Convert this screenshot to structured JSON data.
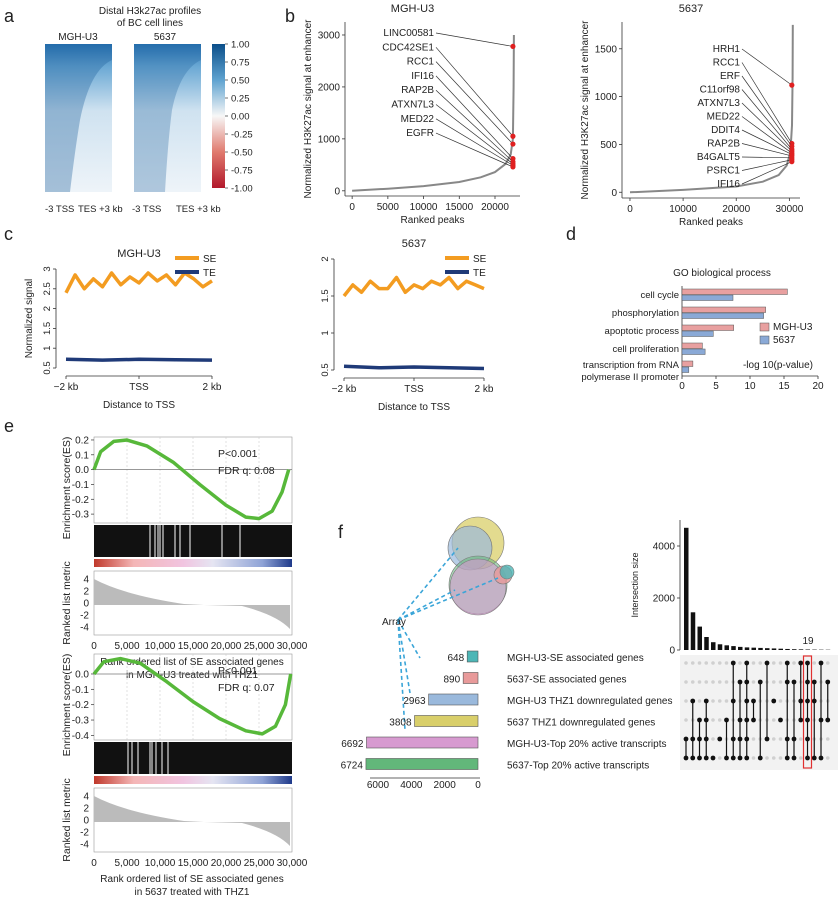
{
  "panels": {
    "a": {
      "letter": "a",
      "title_line1": "Distal H3k27ac profiles",
      "title_line2": "of BC cell lines",
      "col_labels": [
        "MGH-U3",
        "5637"
      ],
      "x_labels": [
        "-3 TSS",
        "TES +3 kb",
        "-3 TSS",
        "TES +3 kb"
      ],
      "colorbar_ticks": [
        "1.00",
        "0.75",
        "0.50",
        "0.25",
        "0.00",
        "-0.25",
        "-0.50",
        "-0.75",
        "-1.00"
      ],
      "colors": {
        "high": "#0b4f8a",
        "mid": "#f7f7f7",
        "low": "#b2182b"
      }
    },
    "b": {
      "letter": "b"
    },
    "c": {
      "letter": "c",
      "legend": [
        "SE",
        "TE"
      ],
      "se_color": "#f39c21",
      "te_color": "#1f3a78"
    },
    "d": {
      "letter": "d"
    },
    "e": {
      "letter": "e"
    },
    "f": {
      "letter": "f",
      "array_label": "Array",
      "sets": [
        {
          "count": "648",
          "name": "MGH-U3-SE associated genes",
          "color": "#4db6b6"
        },
        {
          "count": "890",
          "name": "5637-SE associated genes",
          "color": "#e89a9a"
        },
        {
          "count": "2963",
          "name": "MGH-U3 THZ1 downregulated genes",
          "color": "#9ab9dc"
        },
        {
          "count": "3808",
          "name": "5637 THZ1 downregulated genes",
          "color": "#d9cf6a"
        },
        {
          "count": "6692",
          "name": "MGH-U3-Top 20% active transcripts",
          "color": "#d79ad0"
        },
        {
          "count": "6724",
          "name": "5637-Top 20% active transcripts",
          "color": "#62b77a"
        }
      ],
      "set_axis_ticks": [
        "6000",
        "4000",
        "2000",
        "0"
      ],
      "inter_ylabel": "Intersection size",
      "inter_ticks": [
        "0",
        "2000",
        "4000"
      ],
      "highlight_label": "19"
    }
  },
  "chart_data": [
    {
      "id": "b-MGH-U3",
      "type": "line",
      "title": "MGH-U3",
      "xlabel": "Ranked peaks",
      "ylabel": "Normalized H3K27ac signal at enhancer",
      "xlim": [
        -1000,
        23500
      ],
      "ylim": [
        -100,
        3250
      ],
      "xticks": [
        0,
        5000,
        10000,
        15000,
        20000
      ],
      "yticks": [
        0,
        1000,
        2000,
        3000
      ],
      "curve": [
        [
          0,
          0
        ],
        [
          5000,
          40
        ],
        [
          10000,
          90
        ],
        [
          15000,
          170
        ],
        [
          18000,
          260
        ],
        [
          20000,
          360
        ],
        [
          21500,
          520
        ],
        [
          22200,
          700
        ],
        [
          22500,
          1000
        ],
        [
          22600,
          2000
        ],
        [
          22650,
          3000
        ]
      ],
      "highlighted": [
        {
          "label": "LINC00581",
          "y": 2780
        },
        {
          "label": "CDC42SE1",
          "y": 1050
        },
        {
          "label": "RCC1",
          "y": 900
        },
        {
          "label": "IFI16",
          "y": 620
        },
        {
          "label": "RAP2B",
          "y": 560
        },
        {
          "label": "ATXN7L3",
          "y": 520
        },
        {
          "label": "MED22",
          "y": 490
        },
        {
          "label": "EGFR",
          "y": 460
        }
      ]
    },
    {
      "id": "b-5637",
      "type": "line",
      "title": "5637",
      "xlabel": "Ranked peaks",
      "ylabel": "Normalized H3K27ac signal at enhancer",
      "xlim": [
        -1500,
        32000
      ],
      "ylim": [
        -60,
        1780
      ],
      "xticks": [
        0,
        10000,
        20000,
        30000
      ],
      "yticks": [
        0,
        500,
        1000,
        1500
      ],
      "curve": [
        [
          0,
          0
        ],
        [
          10000,
          25
        ],
        [
          20000,
          60
        ],
        [
          25000,
          110
        ],
        [
          28000,
          180
        ],
        [
          29500,
          280
        ],
        [
          30200,
          420
        ],
        [
          30500,
          700
        ],
        [
          30600,
          1200
        ],
        [
          30650,
          1750
        ]
      ],
      "highlighted": [
        {
          "label": "HRH1",
          "y": 1120
        },
        {
          "label": "RCC1",
          "y": 510
        },
        {
          "label": "ERF",
          "y": 480
        },
        {
          "label": "C11orf98",
          "y": 450
        },
        {
          "label": "ATXN7L3",
          "y": 430
        },
        {
          "label": "MED22",
          "y": 410
        },
        {
          "label": "DDIT4",
          "y": 395
        },
        {
          "label": "RAP2B",
          "y": 380
        },
        {
          "label": "B4GALT5",
          "y": 360
        },
        {
          "label": "PSRC1",
          "y": 340
        },
        {
          "label": "IFI16",
          "y": 320
        }
      ]
    },
    {
      "id": "c-MGH-U3",
      "type": "line",
      "title": "MGH-U3",
      "xlabel": "Distance to TSS",
      "ylabel": "Normalized signal",
      "xtick_labels": [
        "−2 kb",
        "TSS",
        "2 kb"
      ],
      "ylim": [
        0.5,
        3
      ],
      "yticks": [
        0.5,
        1,
        1.5,
        2,
        2.5,
        3
      ],
      "series": [
        {
          "name": "SE",
          "x": [
            -2,
            -1.75,
            -1.5,
            -1.25,
            -1,
            -0.75,
            -0.5,
            -0.25,
            0,
            0.25,
            0.5,
            0.75,
            1,
            1.25,
            1.5,
            1.75,
            2
          ],
          "values": [
            2.4,
            2.85,
            2.5,
            2.75,
            2.55,
            2.9,
            2.6,
            2.8,
            2.65,
            2.9,
            2.7,
            2.85,
            2.6,
            2.9,
            2.75,
            2.55,
            2.7
          ]
        },
        {
          "name": "TE",
          "x": [
            -2,
            -1,
            0,
            1,
            2
          ],
          "values": [
            0.72,
            0.7,
            0.72,
            0.71,
            0.7
          ]
        }
      ]
    },
    {
      "id": "c-5637",
      "type": "line",
      "title": "5637",
      "xlabel": "Distance to TSS",
      "ylabel": "",
      "xtick_labels": [
        "−2 kb",
        "TSS",
        "2 kb"
      ],
      "ylim": [
        0.5,
        2
      ],
      "yticks": [
        0.5,
        1,
        1.5,
        2
      ],
      "series": [
        {
          "name": "SE",
          "x": [
            -2,
            -1.75,
            -1.5,
            -1.25,
            -1,
            -0.75,
            -0.5,
            -0.25,
            0,
            0.25,
            0.5,
            0.75,
            1,
            1.25,
            1.5,
            1.75,
            2
          ],
          "values": [
            1.5,
            1.65,
            1.55,
            1.7,
            1.6,
            1.6,
            1.75,
            1.55,
            1.65,
            1.6,
            1.7,
            1.65,
            1.75,
            1.6,
            1.7,
            1.65,
            1.6
          ]
        },
        {
          "name": "TE",
          "x": [
            -2,
            -1,
            0,
            1,
            2
          ],
          "values": [
            0.55,
            0.53,
            0.54,
            0.53,
            0.52
          ]
        }
      ]
    },
    {
      "id": "d",
      "type": "bar",
      "title": "GO biological process",
      "xlabel": "-log 10(p-value)",
      "xlim": [
        0,
        20
      ],
      "xticks": [
        0,
        5,
        10,
        15,
        20
      ],
      "categories": [
        "cell cycle",
        "phosphorylation",
        "apoptotic process",
        "cell proliferation",
        "transcription from RNA polymerase II promoter"
      ],
      "category_lines": [
        [
          "cell cycle"
        ],
        [
          "phosphorylation"
        ],
        [
          "apoptotic process"
        ],
        [
          "cell proliferation"
        ],
        [
          "transcription from RNA",
          "polymerase II promoter"
        ]
      ],
      "series": [
        {
          "name": "MGH-U3",
          "color": "#e8a0a0",
          "values": [
            15.5,
            12.3,
            7.6,
            3.0,
            1.6
          ]
        },
        {
          "name": "5637",
          "color": "#8aa9d6",
          "values": [
            7.5,
            12.0,
            4.6,
            3.4,
            1.0
          ]
        }
      ]
    },
    {
      "id": "e-top",
      "type": "line",
      "stats": [
        "P<0.001",
        "FDR q:  0.08"
      ],
      "ylabel": "Enrichment score(ES)",
      "ylabel2": "Ranked list metric",
      "xlabel_line1": "Rank ordered list of SE associated genes",
      "xlabel_line2": "in MGH-U3 treated with THZ1",
      "xtick_labels": [
        "0",
        "5,000",
        "10,000",
        "15,000",
        "20,000",
        "25,000",
        "30,000"
      ],
      "es_yticks": [
        "0.2",
        "0.1",
        "0.0",
        "-0.1",
        "-0.2",
        "-0.3"
      ],
      "metric_yticks": [
        "4",
        "2",
        "0",
        "-2",
        "-4"
      ],
      "es_ylim": [
        -0.36,
        0.22
      ],
      "es_curve": [
        [
          0,
          0
        ],
        [
          1000,
          0.12
        ],
        [
          3000,
          0.19
        ],
        [
          5000,
          0.2
        ],
        [
          8000,
          0.16
        ],
        [
          12000,
          0.05
        ],
        [
          16000,
          -0.1
        ],
        [
          20000,
          -0.24
        ],
        [
          23000,
          -0.32
        ],
        [
          25000,
          -0.33
        ],
        [
          27000,
          -0.28
        ],
        [
          28500,
          -0.15
        ],
        [
          29500,
          0
        ]
      ]
    },
    {
      "id": "e-bottom",
      "type": "line",
      "stats": [
        "P<0.001",
        "FDR q:  0.07"
      ],
      "ylabel": "Enrichment score(ES)",
      "ylabel2": "Ranked list metric",
      "xlabel_line1": "Rank ordered list of SE associated genes",
      "xlabel_line2": "in 5637 treated with THZ1",
      "xtick_labels": [
        "0",
        "5,000",
        "10,000",
        "15,000",
        "20,000",
        "25,000",
        "30,000"
      ],
      "es_yticks": [
        "0.0",
        "-0.1",
        "-0.2",
        "-0.3",
        "-0.4"
      ],
      "metric_yticks": [
        "4",
        "2",
        "0",
        "-2",
        "-4"
      ],
      "es_ylim": [
        -0.43,
        0.13
      ],
      "es_curve": [
        [
          0,
          0
        ],
        [
          1500,
          0.08
        ],
        [
          4000,
          0.1
        ],
        [
          7000,
          0.07
        ],
        [
          11000,
          -0.05
        ],
        [
          15000,
          -0.18
        ],
        [
          19000,
          -0.29
        ],
        [
          23000,
          -0.37
        ],
        [
          25500,
          -0.39
        ],
        [
          27500,
          -0.34
        ],
        [
          29000,
          -0.2
        ],
        [
          29800,
          0
        ]
      ]
    },
    {
      "id": "f-upset",
      "type": "bar",
      "ylabel": "Intersection size",
      "values": [
        4700,
        1450,
        900,
        500,
        300,
        220,
        180,
        150,
        120,
        100,
        90,
        80,
        70,
        60,
        50,
        40,
        30,
        25,
        19,
        15,
        12,
        10
      ]
    }
  ]
}
